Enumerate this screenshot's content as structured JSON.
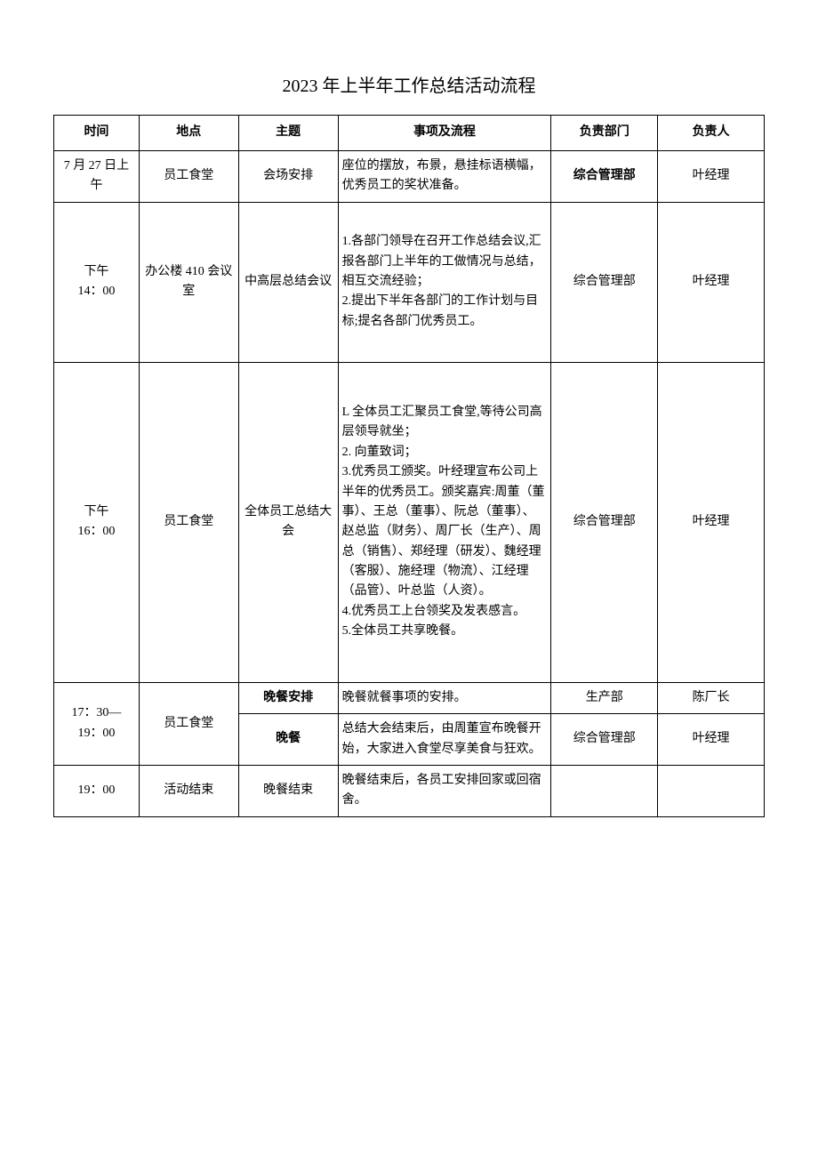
{
  "title": "2023 年上半年工作总结活动流程",
  "table": {
    "headers": {
      "time": "时间",
      "location": "地点",
      "subject": "主题",
      "process": "事项及流程",
      "department": "负责部门",
      "person": "负责人"
    },
    "rows": [
      {
        "time": "7 月 27 日上午",
        "location": "员工食堂",
        "subject": "会场安排",
        "process": "座位的摆放，布景，悬挂标语横幅，优秀员工的奖状准备。",
        "department": "综合管理部",
        "department_bold": true,
        "person": "叶经理"
      },
      {
        "time": "下午\n14：00",
        "location": "办公楼 410 会议室",
        "subject": "中高层总结会议",
        "process": "1.各部门领导在召开工作总结会议,汇报各部门上半年的工做情况与总结，相互交流经验；\n2.提出下半年各部门的工作计划与目标;提名各部门优秀员工。",
        "department": "综合管理部",
        "person": "叶经理"
      },
      {
        "time": "下午\n16：00",
        "location": "员工食堂",
        "subject": "全体员工总结大会",
        "process": "L 全体员工汇聚员工食堂,等待公司高层领导就坐；\n2. 向董致词；\n3.优秀员工颁奖。叶经理宣布公司上半年的优秀员工。颁奖嘉宾:周董（董事）、王总（董事）、阮总（董事）、赵总监（财务）、周厂长（生产）、周总（销售）、郑经理（研发）、魏经理 （客服）、施经理（物流）、江经理（品管）、叶总监（人资）。\n4.优秀员工上台领奖及发表感言。\n5.全体员工共享晚餐。",
        "department": "综合管理部",
        "person": "叶经理"
      },
      {
        "time": "17：30—\n19：00",
        "location": "员工食堂",
        "subject": "晚餐安排",
        "subject_bold": true,
        "process": "晚餐就餐事项的安排。",
        "department": "生产部",
        "person": "陈厂长"
      },
      {
        "subject": "晚餐",
        "subject_bold": true,
        "process": "总结大会结束后，由周董宣布晚餐开始，大家进入食堂尽享美食与狂欢。",
        "department": "综合管理部",
        "person": "叶经理"
      },
      {
        "time": "19：00",
        "location": "活动结束",
        "subject": "晚餐结束",
        "process": "晚餐结束后，各员工安排回家或回宿舍。",
        "department": "",
        "person": ""
      }
    ]
  },
  "styling": {
    "page_bg": "#ffffff",
    "text_color": "#000000",
    "border_color": "#000000",
    "title_fontsize": 20,
    "cell_fontsize": 14,
    "font_family": "SimSun"
  }
}
